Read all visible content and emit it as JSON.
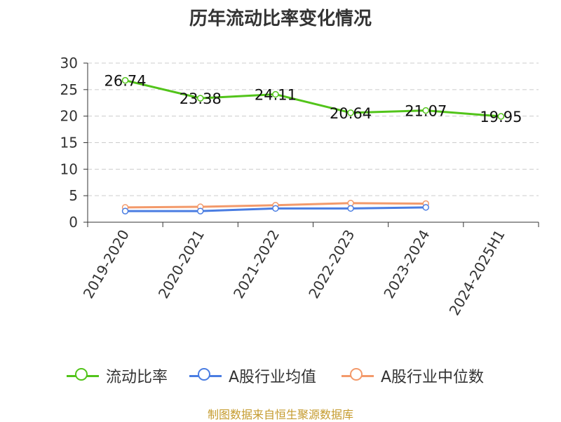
{
  "chart_data": {
    "type": "line",
    "title": "历年流动比率变化情况",
    "categories": [
      "2019-2020",
      "2020-2021",
      "2021-2022",
      "2022-2023",
      "2023-2024",
      "2024-2025H1"
    ],
    "ylim": [
      0,
      30
    ],
    "yticks": [
      0,
      5,
      10,
      15,
      20,
      25,
      30
    ],
    "grid": true,
    "legend_position": "bottom",
    "series": [
      {
        "name": "流动比率",
        "color": "#52c41a",
        "values": [
          26.74,
          23.38,
          24.11,
          20.64,
          21.07,
          19.95
        ],
        "labels": [
          "26.74",
          "23.38",
          "24.11",
          "20.64",
          "21.07",
          "19.95"
        ]
      },
      {
        "name": "A股行业均值",
        "color": "#4a7de2",
        "values": [
          2.1,
          2.1,
          2.6,
          2.6,
          2.8,
          null
        ]
      },
      {
        "name": "A股行业中位数",
        "color": "#f39a6b",
        "values": [
          2.8,
          2.9,
          3.2,
          3.6,
          3.5,
          null
        ]
      }
    ]
  },
  "source": "制图数据来自恒生聚源数据库"
}
